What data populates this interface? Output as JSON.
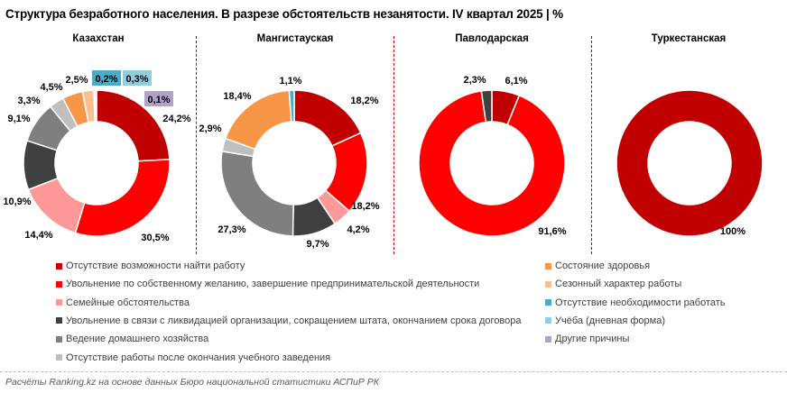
{
  "title": "Структура безработного населения. В разрезе обстоятельств незанятости. IV квартал 2025 | %",
  "footer": "Расчёты Ranking.kz на основе данных Бюро национальной статистики АСПиР РК",
  "chart_data": {
    "type": "pie",
    "variant": "donut",
    "unit": "%",
    "categories": [
      {
        "name": "Отсутствие возможности найти работу",
        "color": "#c00000"
      },
      {
        "name": "Увольнение по собственному желанию, завершение предпринимательской деятельности",
        "color": "#ff0000"
      },
      {
        "name": "Семейные обстоятельства",
        "color": "#ff9999"
      },
      {
        "name": "Увольнение в связи с ликвидацией организации, сокращением штата, окончанием срока договора",
        "color": "#404040"
      },
      {
        "name": "Ведение домашнего хозяйства",
        "color": "#7f7f7f"
      },
      {
        "name": "Отсутствие работы после окончания учебного  заведения",
        "color": "#bfbfbf"
      },
      {
        "name": "Состояние здоровья",
        "color": "#f79646"
      },
      {
        "name": "Сезонный характер работы",
        "color": "#fac090"
      },
      {
        "name": "Отсутствие необходимости работать",
        "color": "#4bacc6"
      },
      {
        "name": "Учёба (дневная форма)",
        "color": "#92cddc"
      },
      {
        "name": "Другие причины",
        "color": "#b3a2c7"
      }
    ],
    "charts": [
      {
        "title": "Казахстан",
        "values": [
          24.2,
          30.5,
          14.4,
          10.9,
          9.1,
          3.3,
          4.5,
          2.5,
          0.2,
          0.3,
          0.1
        ],
        "labels": [
          "24,2%",
          "30,5%",
          "14,4%",
          "10,9%",
          "9,1%",
          "3,3%",
          "4,5%",
          "2,5%",
          "0,2%",
          "0,3%",
          "0,1%"
        ]
      },
      {
        "title": "Мангистауская",
        "values": [
          18.2,
          18.2,
          4.2,
          9.7,
          27.3,
          2.9,
          18.4,
          0,
          1.1,
          0,
          0
        ],
        "labels": [
          "18,2%",
          "18,2%",
          "4,2%",
          "9,7%",
          "27,3%",
          "2,9%",
          "18,4%",
          "",
          "1,1%",
          "",
          ""
        ]
      },
      {
        "title": "Павлодарская",
        "values": [
          6.1,
          91.6,
          0,
          2.3,
          0,
          0,
          0,
          0,
          0,
          0,
          0
        ],
        "labels": [
          "6,1%",
          "91,6%",
          "",
          "2,3%",
          "",
          "",
          "",
          "",
          "",
          "",
          ""
        ]
      },
      {
        "title": "Туркестанская",
        "values": [
          100,
          0,
          0,
          0,
          0,
          0,
          0,
          0,
          0,
          0,
          0
        ],
        "labels": [
          "100%",
          "",
          "",
          "",
          "",
          "",
          "",
          "",
          "",
          "",
          ""
        ]
      }
    ],
    "legend_position": "bottom"
  }
}
